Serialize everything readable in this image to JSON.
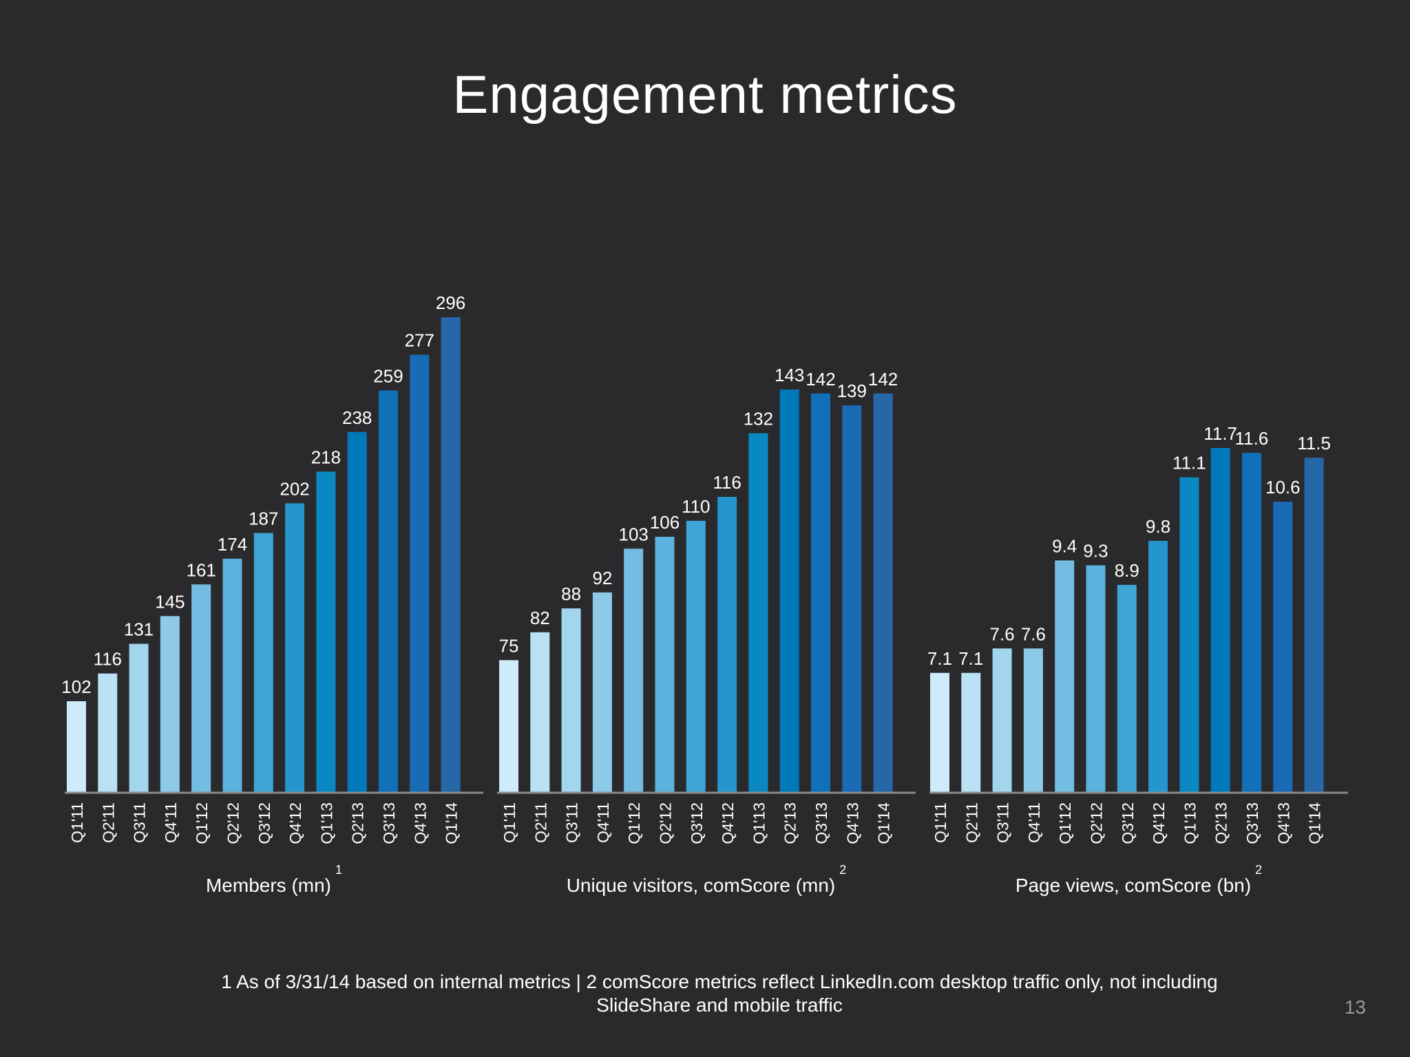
{
  "slide": {
    "title": "Engagement metrics",
    "footnote_line1": "1 As of 3/31/14 based on internal metrics | 2 comScore metrics reflect LinkedIn.com desktop traffic only, not including",
    "footnote_line2": "SlideShare and mobile traffic",
    "page_number": "13"
  },
  "colors": {
    "background": "#2a2a2d",
    "axis": "#8a8a8a",
    "text": "#ffffff",
    "bar_palette": [
      "#cdebf8",
      "#b9e0f3",
      "#a2d5ee",
      "#8dcae8",
      "#74bde2",
      "#5cb2de",
      "#3fa4d6",
      "#2596cd",
      "#0a88c2",
      "#0079bb",
      "#1071b8",
      "#1a6bb6",
      "#2667a8"
    ]
  },
  "chart_data": [
    {
      "type": "bar",
      "title": "",
      "xlabel": "Members (mn)",
      "xlabel_footnote": "1",
      "ylabel": "",
      "categories": [
        "Q1'11",
        "Q2'11",
        "Q3'11",
        "Q4'11",
        "Q1'12",
        "Q2'12",
        "Q3'12",
        "Q4'12",
        "Q1'13",
        "Q2'13",
        "Q3'13",
        "Q4'13",
        "Q1'14"
      ],
      "values": [
        102,
        116,
        131,
        145,
        161,
        174,
        187,
        202,
        218,
        238,
        259,
        277,
        296
      ],
      "data_labels": [
        "102",
        "116",
        "131",
        "145",
        "161",
        "174",
        "187",
        "202",
        "218",
        "238",
        "259",
        "277",
        "296"
      ],
      "ylim": [
        70,
        296
      ],
      "grid": false,
      "legend": "none"
    },
    {
      "type": "bar",
      "title": "",
      "xlabel": "Unique visitors, comScore (mn)",
      "xlabel_footnote": "2",
      "ylabel": "",
      "categories": [
        "Q1'11",
        "Q2'11",
        "Q3'11",
        "Q4'11",
        "Q1'12",
        "Q2'12",
        "Q3'12",
        "Q4'12",
        "Q1'13",
        "Q2'13",
        "Q3'13",
        "Q4'13",
        "Q1'14"
      ],
      "values": [
        75,
        82,
        88,
        92,
        103,
        106,
        110,
        116,
        132,
        143,
        142,
        139,
        142
      ],
      "data_labels": [
        "75",
        "82",
        "88",
        "92",
        "103",
        "106",
        "110",
        "116",
        "132",
        "143",
        "142",
        "139",
        "142"
      ],
      "ylim": [
        60,
        143
      ],
      "grid": false,
      "legend": "none"
    },
    {
      "type": "bar",
      "title": "",
      "xlabel": "Page views, comScore (bn)",
      "xlabel_footnote": "2",
      "ylabel": "",
      "categories": [
        "Q1'11",
        "Q2'11",
        "Q3'11",
        "Q4'11",
        "Q1'12",
        "Q2'12",
        "Q3'12",
        "Q4'12",
        "Q1'13",
        "Q2'13",
        "Q3'13",
        "Q4'13",
        "Q1'14"
      ],
      "values": [
        7.1,
        7.1,
        7.6,
        7.6,
        9.4,
        9.3,
        8.9,
        9.8,
        11.1,
        11.7,
        11.6,
        10.6,
        11.5
      ],
      "data_labels": [
        "7.1",
        "7.1",
        "7.6",
        "7.6",
        "9.4",
        "9.3",
        "8.9",
        "9.8",
        "11.1",
        "11.7",
        "11.6",
        "10.6",
        "11.5"
      ],
      "ylim": [
        6.0,
        11.7
      ],
      "grid": false,
      "legend": "none"
    }
  ]
}
